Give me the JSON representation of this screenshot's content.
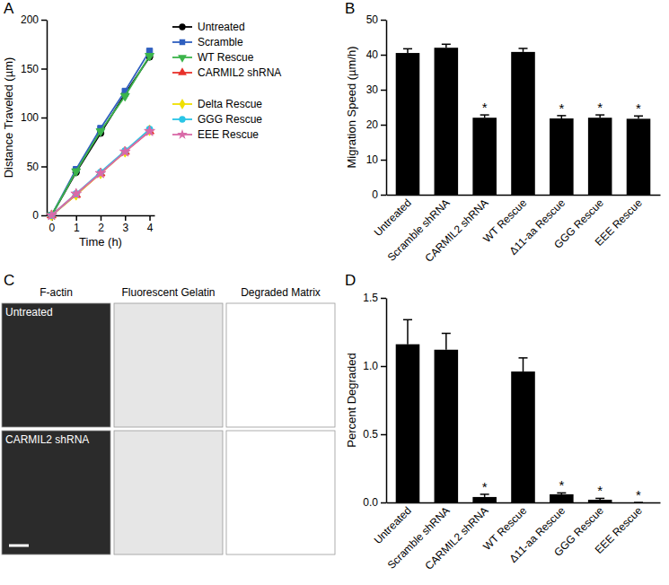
{
  "chart_data": [
    {
      "type": "line",
      "title": "A",
      "x_label": "Time (h)",
      "y_label": "Distance Traveled (µm)",
      "x": [
        0,
        1,
        2,
        3,
        4
      ],
      "xlim": [
        -0.2,
        4.2
      ],
      "xticks": [
        0,
        1,
        2,
        3,
        4
      ],
      "ylim": [
        0,
        200
      ],
      "yticks": [
        0,
        50,
        100,
        150,
        200
      ],
      "grid": false,
      "legend": "right",
      "series": [
        {
          "name": "Untreated",
          "color": "#000000",
          "marker": "circle",
          "values": [
            0,
            44,
            84,
            124,
            162
          ]
        },
        {
          "name": "Scramble",
          "color": "#2f5fbf",
          "marker": "square",
          "values": [
            0,
            47,
            89,
            127,
            168
          ]
        },
        {
          "name": "WT Rescue",
          "color": "#3cb44b",
          "marker": "triangle-down",
          "values": [
            0,
            45,
            86,
            122,
            163
          ]
        },
        {
          "name": "CARMIL2 shRNA",
          "color": "#e8322b",
          "marker": "triangle",
          "values": [
            0,
            21,
            43,
            65,
            86
          ]
        },
        {
          "name": "Delta Rescue",
          "color": "#f0e000",
          "marker": "diamond",
          "values": [
            0,
            21,
            43,
            65,
            87
          ]
        },
        {
          "name": "GGG Rescue",
          "color": "#29c5e6",
          "marker": "circle",
          "values": [
            0,
            22,
            44,
            66,
            88
          ]
        },
        {
          "name": "EEE Rescue",
          "color": "#d96aa8",
          "marker": "star",
          "values": [
            0,
            22,
            43,
            65,
            86
          ]
        }
      ]
    },
    {
      "type": "bar",
      "title": "B",
      "y_label": "Migration Speed (µm/h)",
      "categories": [
        "Untreated",
        "Scramble shRNA",
        "CARMIL2 shRNA",
        "WT Rescue",
        "Δ11-aa Rescue",
        "GGG Rescue",
        "EEE Rescue"
      ],
      "values": [
        40.5,
        42,
        22,
        40.8,
        21.8,
        22,
        21.7
      ],
      "errors": [
        1.2,
        1.0,
        0.8,
        1.0,
        0.8,
        0.8,
        0.8
      ],
      "significance": [
        null,
        null,
        "*",
        null,
        "*",
        "*",
        "*"
      ],
      "color": "#000000",
      "ylim": [
        0,
        50
      ],
      "yticks": [
        0,
        10,
        20,
        30,
        40,
        50
      ],
      "grid": false
    },
    {
      "type": "image",
      "title": "C",
      "columns": [
        "F-actin",
        "Fluorescent Gelatin",
        "Degraded Matrix"
      ],
      "rows": [
        "Untreated",
        "CARMIL2 shRNA"
      ]
    },
    {
      "type": "bar",
      "title": "D",
      "y_label": "Percent Degraded",
      "categories": [
        "Untreated",
        "Scramble shRNA",
        "CARMIL2 shRNA",
        "WT Rescue",
        "Δ11-aa Rescue",
        "GGG Rescue",
        "EEE Rescue"
      ],
      "values": [
        1.16,
        1.12,
        0.04,
        0.96,
        0.06,
        0.02,
        0.0
      ],
      "errors": [
        0.18,
        0.12,
        0.02,
        0.1,
        0.01,
        0.01,
        0.0
      ],
      "significance": [
        null,
        null,
        "*",
        null,
        "*",
        "*",
        "*"
      ],
      "color": "#000000",
      "ylim": [
        0,
        1.5
      ],
      "yticks": [
        {
          "value": 0,
          "label": "0.0"
        },
        {
          "value": 0.5,
          "label": "0.5"
        },
        {
          "value": 1,
          "label": "1.0"
        },
        {
          "value": 1.5,
          "label": "1.5"
        }
      ],
      "grid": false
    }
  ]
}
